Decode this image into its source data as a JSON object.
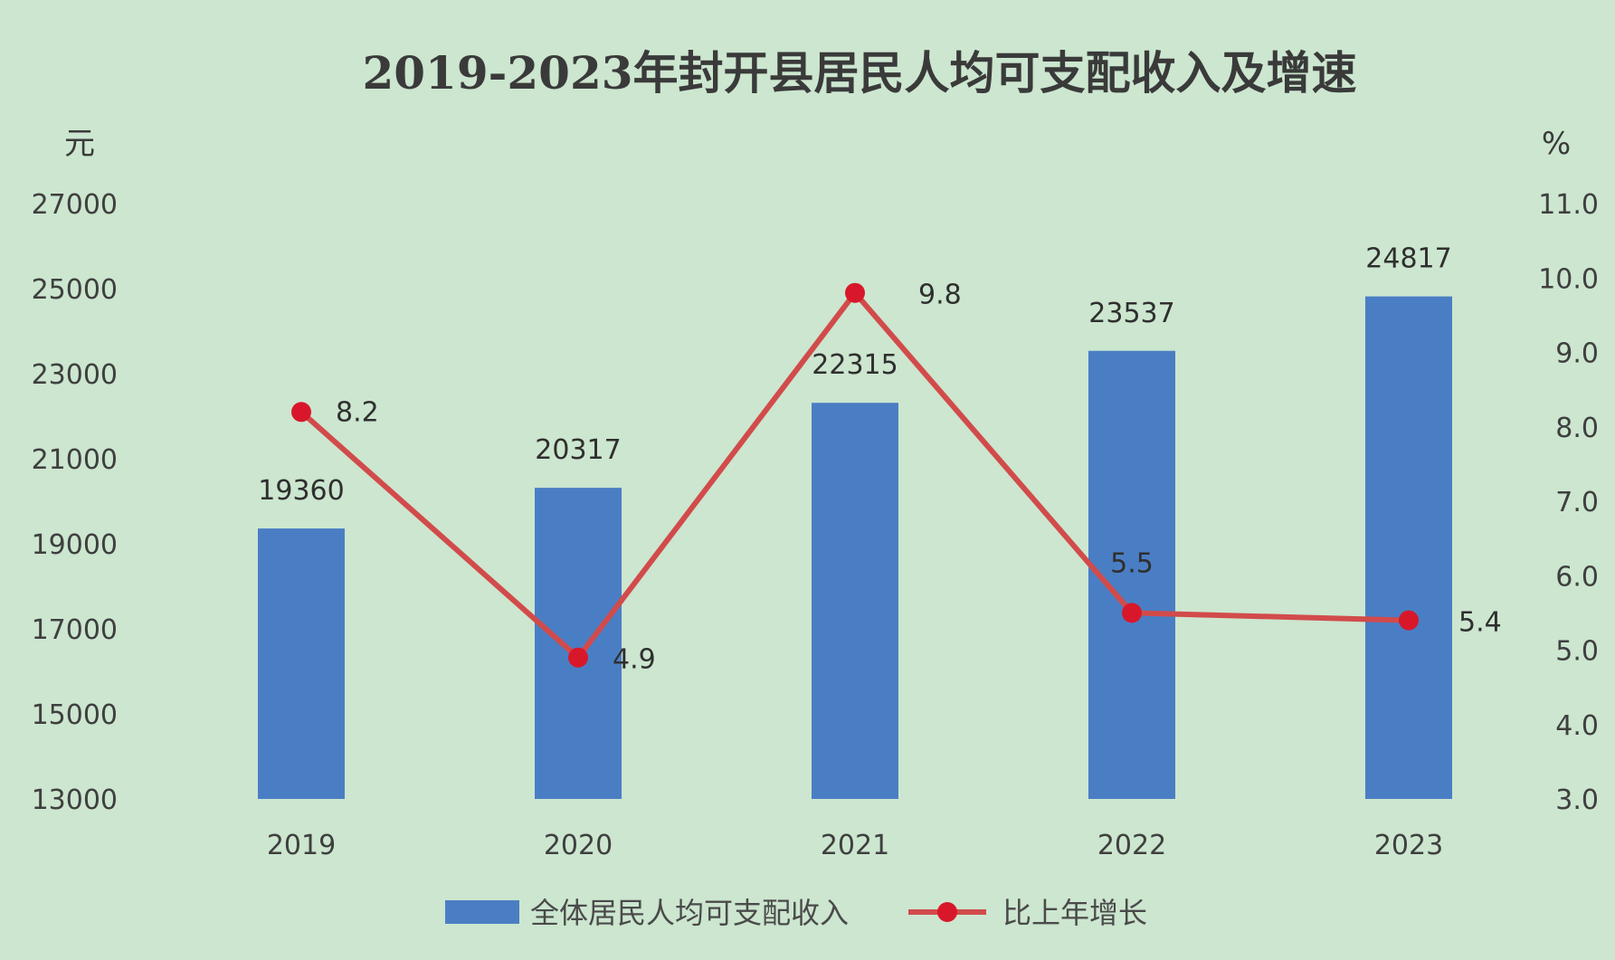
{
  "chart_data": {
    "type": "bar+line",
    "title": "2019-2023年封开县居民人均可支配收入及增速",
    "categories": [
      "2019",
      "2020",
      "2021",
      "2022",
      "2023"
    ],
    "left_axis": {
      "unit": "元",
      "ylim": [
        13000,
        27000
      ],
      "ticks": [
        "13000",
        "15000",
        "17000",
        "19000",
        "21000",
        "23000",
        "25000",
        "27000"
      ]
    },
    "right_axis": {
      "unit": "%",
      "ylim": [
        3.0,
        11.0
      ],
      "ticks": [
        "3.0",
        "4.0",
        "5.0",
        "6.0",
        "7.0",
        "8.0",
        "9.0",
        "10.0",
        "11.0"
      ]
    },
    "series": [
      {
        "name": "全体居民人均可支配收入",
        "type": "bar",
        "axis": "left",
        "values": [
          19360,
          20317,
          22315,
          23537,
          24817
        ],
        "labels": [
          "19360",
          "20317",
          "22315",
          "23537",
          "24817"
        ],
        "color": "#4a7ec4"
      },
      {
        "name": "比上年增长",
        "type": "line",
        "axis": "right",
        "values": [
          8.2,
          4.9,
          9.8,
          5.5,
          5.4
        ],
        "labels": [
          "8.2",
          "4.9",
          "9.8",
          "5.5",
          "5.4"
        ],
        "color": "#d24b4b"
      }
    ],
    "grid": false,
    "legend_position": "bottom"
  }
}
